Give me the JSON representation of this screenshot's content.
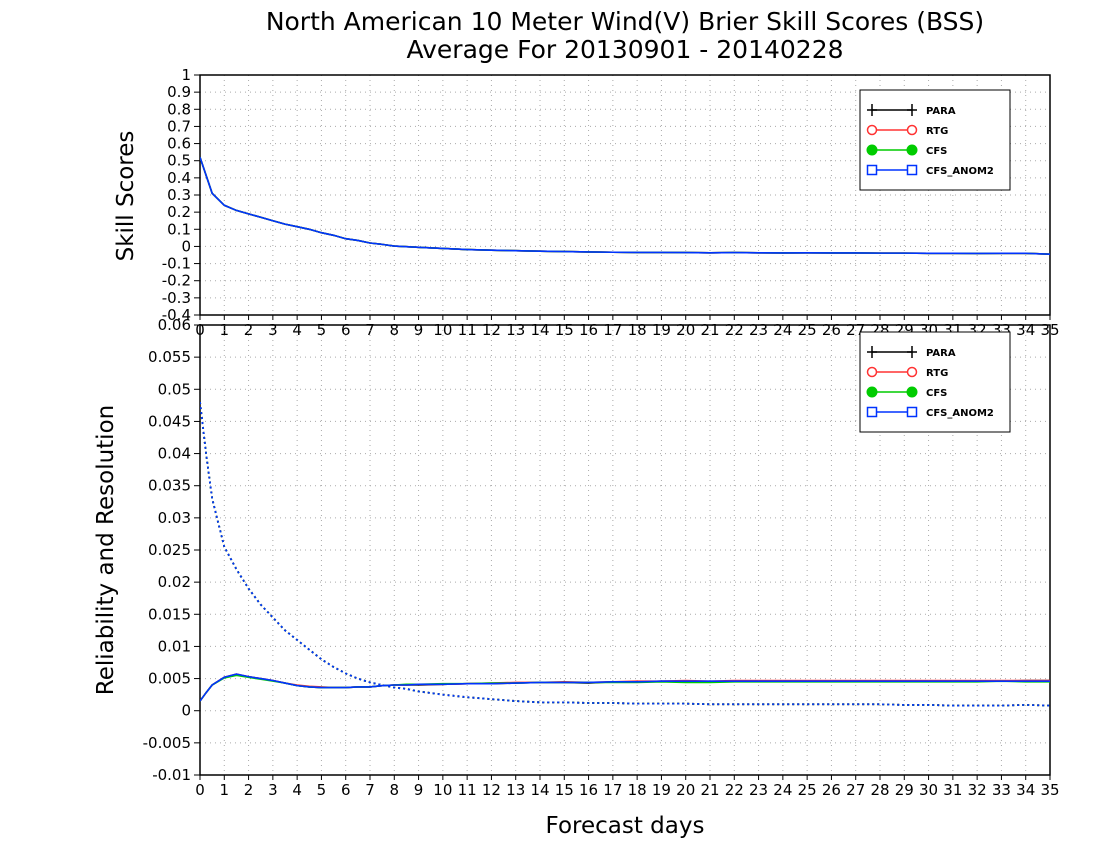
{
  "chart_data": [
    {
      "type": "line",
      "title": "North American 10 Meter Wind(V) Brier Skill Scores (BSS)",
      "subtitle": "Average For 20130901 - 20140228",
      "xlabel": "",
      "ylabel": "Skill Scores",
      "xlim": [
        0,
        35
      ],
      "ylim": [
        -0.4,
        1
      ],
      "yticks": [
        "-0.4",
        "-0.3",
        "-0.2",
        "-0.1",
        "0",
        "0.1",
        "0.2",
        "0.3",
        "0.4",
        "0.5",
        "0.6",
        "0.7",
        "0.8",
        "0.9",
        "1"
      ],
      "xticks": [
        "0",
        "1",
        "2",
        "3",
        "4",
        "5",
        "6",
        "7",
        "8",
        "9",
        "10",
        "11",
        "12",
        "13",
        "14",
        "15",
        "16",
        "17",
        "18",
        "19",
        "20",
        "21",
        "22",
        "23",
        "24",
        "25",
        "26",
        "27",
        "28",
        "29",
        "30",
        "31",
        "32",
        "33",
        "34",
        "35"
      ],
      "grid": true,
      "legend_position": "top-right",
      "x": [
        0,
        0.5,
        1,
        1.5,
        2,
        2.5,
        3,
        3.5,
        4,
        4.5,
        5,
        5.5,
        6,
        6.5,
        7,
        7.5,
        8,
        9,
        10,
        11,
        12,
        13,
        14,
        15,
        16,
        17,
        18,
        19,
        20,
        21,
        22,
        23,
        24,
        25,
        26,
        27,
        28,
        29,
        30,
        31,
        32,
        33,
        34,
        35
      ],
      "series": [
        {
          "name": "PARA",
          "color": "#000000",
          "marker": "plus",
          "values": [
            0.52,
            0.31,
            0.24,
            0.21,
            0.19,
            0.17,
            0.15,
            0.13,
            0.115,
            0.1,
            0.08,
            0.065,
            0.045,
            0.035,
            0.02,
            0.012,
            0.002,
            -0.005,
            -0.012,
            -0.018,
            -0.022,
            -0.025,
            -0.028,
            -0.03,
            -0.032,
            -0.034,
            -0.035,
            -0.035,
            -0.036,
            -0.037,
            -0.036,
            -0.037,
            -0.038,
            -0.037,
            -0.038,
            -0.038,
            -0.039,
            -0.039,
            -0.04,
            -0.04,
            -0.041,
            -0.04,
            -0.04,
            -0.045
          ]
        },
        {
          "name": "RTG",
          "color": "#ff3333",
          "marker": "circle",
          "values": [
            0.52,
            0.31,
            0.24,
            0.21,
            0.19,
            0.17,
            0.15,
            0.13,
            0.115,
            0.1,
            0.08,
            0.065,
            0.045,
            0.035,
            0.02,
            0.012,
            0.002,
            -0.005,
            -0.012,
            -0.018,
            -0.022,
            -0.025,
            -0.028,
            -0.03,
            -0.032,
            -0.034,
            -0.035,
            -0.035,
            -0.036,
            -0.037,
            -0.036,
            -0.037,
            -0.038,
            -0.037,
            -0.038,
            -0.038,
            -0.039,
            -0.039,
            -0.04,
            -0.04,
            -0.041,
            -0.04,
            -0.04,
            -0.045
          ]
        },
        {
          "name": "CFS",
          "color": "#00cc00",
          "marker": "dot",
          "values": [
            0.52,
            0.31,
            0.24,
            0.21,
            0.19,
            0.17,
            0.15,
            0.13,
            0.115,
            0.1,
            0.08,
            0.065,
            0.045,
            0.035,
            0.02,
            0.012,
            0.002,
            -0.005,
            -0.012,
            -0.018,
            -0.022,
            -0.025,
            -0.028,
            -0.03,
            -0.032,
            -0.034,
            -0.035,
            -0.035,
            -0.036,
            -0.037,
            -0.036,
            -0.037,
            -0.038,
            -0.037,
            -0.038,
            -0.038,
            -0.039,
            -0.039,
            -0.04,
            -0.04,
            -0.041,
            -0.04,
            -0.04,
            -0.045
          ]
        },
        {
          "name": "CFS_ANOM2",
          "color": "#0033ff",
          "marker": "square",
          "values": [
            0.52,
            0.31,
            0.24,
            0.21,
            0.19,
            0.17,
            0.15,
            0.13,
            0.115,
            0.1,
            0.08,
            0.065,
            0.045,
            0.035,
            0.02,
            0.012,
            0.002,
            -0.005,
            -0.012,
            -0.018,
            -0.022,
            -0.025,
            -0.028,
            -0.03,
            -0.032,
            -0.034,
            -0.035,
            -0.035,
            -0.036,
            -0.037,
            -0.036,
            -0.037,
            -0.038,
            -0.037,
            -0.038,
            -0.038,
            -0.039,
            -0.039,
            -0.04,
            -0.04,
            -0.041,
            -0.04,
            -0.04,
            -0.045
          ]
        }
      ]
    },
    {
      "type": "line",
      "title": "",
      "xlabel": "Forecast days",
      "ylabel": "Reliability and Resolution",
      "xlim": [
        0,
        35
      ],
      "ylim": [
        -0.01,
        0.06
      ],
      "yticks": [
        "-0.01",
        "-0.005",
        "0",
        "0.005",
        "0.01",
        "0.015",
        "0.02",
        "0.025",
        "0.03",
        "0.035",
        "0.04",
        "0.045",
        "0.05",
        "0.055",
        "0.06"
      ],
      "xticks": [
        "0",
        "1",
        "2",
        "3",
        "4",
        "5",
        "6",
        "7",
        "8",
        "9",
        "10",
        "11",
        "12",
        "13",
        "14",
        "15",
        "16",
        "17",
        "18",
        "19",
        "20",
        "21",
        "22",
        "23",
        "24",
        "25",
        "26",
        "27",
        "28",
        "29",
        "30",
        "31",
        "32",
        "33",
        "34",
        "35"
      ],
      "grid": true,
      "legend_position": "top-right",
      "x": [
        0,
        0.25,
        0.5,
        1,
        1.5,
        2,
        2.5,
        3,
        3.5,
        4,
        4.5,
        5,
        5.5,
        6,
        6.5,
        7,
        7.5,
        8,
        8.5,
        9,
        10,
        11,
        12,
        13,
        14,
        15,
        16,
        17,
        18,
        19,
        20,
        21,
        22,
        23,
        24,
        25,
        26,
        27,
        28,
        29,
        30,
        31,
        32,
        33,
        34,
        35
      ],
      "line_styles": {
        "resolution": "solid",
        "reliability": "dotted"
      },
      "series": [
        {
          "name": "PARA",
          "color": "#000000",
          "marker": "plus",
          "resolution": [
            0.0015,
            0.0028,
            0.004,
            0.0052,
            0.0056,
            0.0053,
            0.005,
            0.0047,
            0.0043,
            0.0039,
            0.0037,
            0.0036,
            0.0036,
            0.0036,
            0.0037,
            0.0037,
            0.0039,
            0.004,
            0.004,
            0.004,
            0.0041,
            0.0042,
            0.0042,
            0.0043,
            0.0044,
            0.0044,
            0.0043,
            0.0045,
            0.0045,
            0.0046,
            0.0046,
            0.0045,
            0.0046,
            0.0046,
            0.0046,
            0.0046,
            0.0046,
            0.0046,
            0.0046,
            0.0046,
            0.0046,
            0.0046,
            0.0046,
            0.0046,
            0.0047,
            0.0047
          ],
          "reliability": [
            0.048,
            0.04,
            0.033,
            0.0255,
            0.022,
            0.019,
            0.0165,
            0.0145,
            0.0125,
            0.011,
            0.0095,
            0.008,
            0.0068,
            0.0058,
            0.005,
            0.0044,
            0.004,
            0.0036,
            0.0034,
            0.003,
            0.0025,
            0.0021,
            0.0018,
            0.0015,
            0.0013,
            0.0013,
            0.0012,
            0.0012,
            0.0011,
            0.0011,
            0.0011,
            0.001,
            0.001,
            0.001,
            0.001,
            0.001,
            0.001,
            0.001,
            0.001,
            0.0009,
            0.0009,
            0.0008,
            0.0008,
            0.0008,
            0.0009,
            0.0008
          ]
        },
        {
          "name": "RTG",
          "color": "#ff3333",
          "marker": "circle",
          "resolution": [
            0.0015,
            0.0028,
            0.004,
            0.0052,
            0.0057,
            0.0053,
            0.005,
            0.0047,
            0.0043,
            0.004,
            0.0038,
            0.0037,
            0.0036,
            0.0036,
            0.0037,
            0.0037,
            0.0039,
            0.004,
            0.004,
            0.0041,
            0.0041,
            0.0042,
            0.0043,
            0.0044,
            0.0044,
            0.0045,
            0.0044,
            0.0045,
            0.0046,
            0.0046,
            0.0047,
            0.0046,
            0.0047,
            0.0047,
            0.0047,
            0.0047,
            0.0047,
            0.0047,
            0.0047,
            0.0047,
            0.0047,
            0.0047,
            0.0047,
            0.0047,
            0.0047,
            0.0047
          ],
          "reliability": [
            0.048,
            0.04,
            0.033,
            0.0255,
            0.022,
            0.019,
            0.0165,
            0.0145,
            0.0125,
            0.011,
            0.0095,
            0.008,
            0.0068,
            0.0058,
            0.005,
            0.0044,
            0.004,
            0.0036,
            0.0034,
            0.003,
            0.0025,
            0.0021,
            0.0018,
            0.0015,
            0.0013,
            0.0013,
            0.0012,
            0.0012,
            0.0011,
            0.0011,
            0.0011,
            0.001,
            0.001,
            0.001,
            0.001,
            0.001,
            0.001,
            0.001,
            0.001,
            0.0009,
            0.0009,
            0.0008,
            0.0008,
            0.0008,
            0.0009,
            0.0008
          ]
        },
        {
          "name": "CFS",
          "color": "#00cc00",
          "marker": "dot",
          "resolution": [
            0.0015,
            0.0028,
            0.004,
            0.0051,
            0.0055,
            0.0052,
            0.0049,
            0.0046,
            0.0043,
            0.0039,
            0.0037,
            0.0036,
            0.0036,
            0.0036,
            0.0037,
            0.0037,
            0.0039,
            0.004,
            0.0041,
            0.0041,
            0.0042,
            0.0042,
            0.0043,
            0.0043,
            0.0044,
            0.0044,
            0.0044,
            0.0044,
            0.0044,
            0.0045,
            0.0044,
            0.0044,
            0.0045,
            0.0045,
            0.0045,
            0.0045,
            0.0045,
            0.0045,
            0.0045,
            0.0045,
            0.0045,
            0.0045,
            0.0045,
            0.0046,
            0.0045,
            0.0045
          ],
          "reliability": [
            0.048,
            0.04,
            0.033,
            0.0255,
            0.022,
            0.019,
            0.0165,
            0.0145,
            0.0125,
            0.011,
            0.0095,
            0.008,
            0.0068,
            0.0058,
            0.005,
            0.0044,
            0.004,
            0.0036,
            0.0034,
            0.003,
            0.0025,
            0.0021,
            0.0018,
            0.0015,
            0.0013,
            0.0013,
            0.0012,
            0.0012,
            0.0011,
            0.0011,
            0.0011,
            0.001,
            0.001,
            0.001,
            0.001,
            0.001,
            0.001,
            0.001,
            0.001,
            0.0009,
            0.0009,
            0.0008,
            0.0008,
            0.0008,
            0.0009,
            0.0008
          ]
        },
        {
          "name": "CFS_ANOM2",
          "color": "#0033ff",
          "marker": "square",
          "resolution": [
            0.0015,
            0.0028,
            0.004,
            0.0052,
            0.0057,
            0.0053,
            0.005,
            0.0047,
            0.0043,
            0.0039,
            0.0037,
            0.0036,
            0.0036,
            0.0036,
            0.0037,
            0.0037,
            0.0039,
            0.004,
            0.004,
            0.0041,
            0.0041,
            0.0042,
            0.0042,
            0.0043,
            0.0044,
            0.0044,
            0.0044,
            0.0045,
            0.0045,
            0.0046,
            0.0046,
            0.0046,
            0.0046,
            0.0046,
            0.0046,
            0.0046,
            0.0046,
            0.0046,
            0.0046,
            0.0046,
            0.0046,
            0.0046,
            0.0046,
            0.0046,
            0.0046,
            0.0046
          ],
          "reliability": [
            0.048,
            0.04,
            0.033,
            0.0255,
            0.022,
            0.019,
            0.0165,
            0.0145,
            0.0125,
            0.011,
            0.0095,
            0.008,
            0.0068,
            0.0058,
            0.005,
            0.0044,
            0.004,
            0.0036,
            0.0034,
            0.003,
            0.0025,
            0.0021,
            0.0018,
            0.0015,
            0.0013,
            0.0013,
            0.0012,
            0.0012,
            0.0011,
            0.0011,
            0.0011,
            0.001,
            0.001,
            0.001,
            0.001,
            0.001,
            0.001,
            0.001,
            0.001,
            0.0009,
            0.0009,
            0.0008,
            0.0008,
            0.0008,
            0.0009,
            0.0008
          ]
        }
      ]
    }
  ]
}
